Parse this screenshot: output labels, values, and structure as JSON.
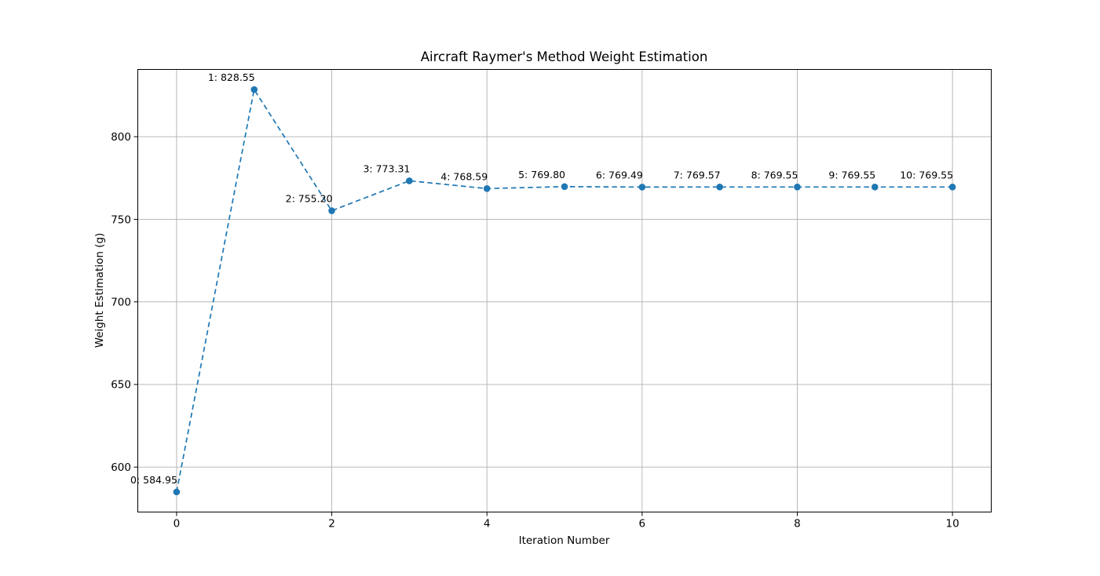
{
  "chart_data": {
    "type": "line",
    "title": "Aircraft Raymer's Method Weight Estimation",
    "xlabel": "Iteration Number",
    "ylabel": "Weight Estimation (g)",
    "x": [
      0,
      1,
      2,
      3,
      4,
      5,
      6,
      7,
      8,
      9,
      10
    ],
    "values": [
      584.95,
      828.55,
      755.2,
      773.31,
      768.59,
      769.8,
      769.49,
      769.57,
      769.55,
      769.55,
      769.55
    ],
    "point_labels": [
      "0: 584.95",
      "1: 828.55",
      "2: 755.20",
      "3: 773.31",
      "4: 768.59",
      "5: 769.80",
      "6: 769.49",
      "7: 769.57",
      "8: 769.55",
      "9: 769.55",
      "10: 769.55"
    ],
    "xticks": [
      "0",
      "2",
      "4",
      "6",
      "8",
      "10"
    ],
    "xtick_values": [
      0,
      2,
      4,
      6,
      8,
      10
    ],
    "yticks": [
      "600",
      "650",
      "700",
      "750",
      "800"
    ],
    "ytick_values": [
      600,
      650,
      700,
      750,
      800
    ],
    "xlim": [
      -0.5,
      10.5
    ],
    "ylim": [
      572.77,
      840.73
    ],
    "line_color": "#1f77b4",
    "line_style": "dashed",
    "marker": "circle",
    "grid": true,
    "grid_color": "#b0b0b0",
    "spine_color": "#000000",
    "legend": "none",
    "background_color": "#ffffff"
  }
}
